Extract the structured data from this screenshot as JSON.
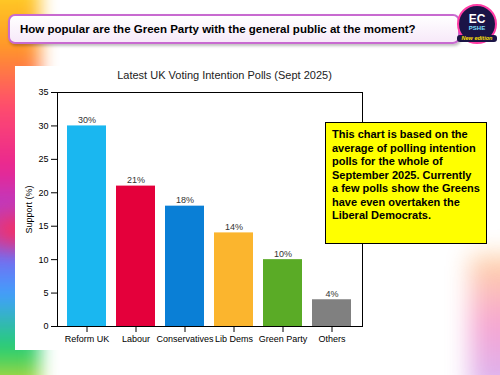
{
  "header": {
    "title": "How popular are the Green Party with the general public at the moment?"
  },
  "logo": {
    "lines": [
      "EC",
      "PSHE",
      "New edition"
    ]
  },
  "chart_data": {
    "type": "bar",
    "title": "Latest UK Voting Intention Polls (Sept 2025)",
    "ylabel": "Support (%)",
    "categories": [
      "Reform UK",
      "Labour",
      "Conservatives",
      "Lib Dems",
      "Green Party",
      "Others"
    ],
    "values": [
      30,
      21,
      18,
      14,
      10,
      4
    ],
    "value_labels": [
      "30%",
      "21%",
      "18%",
      "14%",
      "10%",
      "4%"
    ],
    "colors": [
      "#1ab7f0",
      "#e4003b",
      "#0a7fd6",
      "#fbb52e",
      "#5aab26",
      "#808080"
    ],
    "ylim": [
      0,
      35
    ],
    "yticks": [
      0,
      5,
      10,
      15,
      20,
      25,
      30,
      35
    ],
    "grid": false,
    "data_labels": true,
    "annotation": "This chart is based on the average of polling intention polls for the whole of September 2025. Currently a few polls show the Greens have even overtaken the Liberal Democrats."
  }
}
